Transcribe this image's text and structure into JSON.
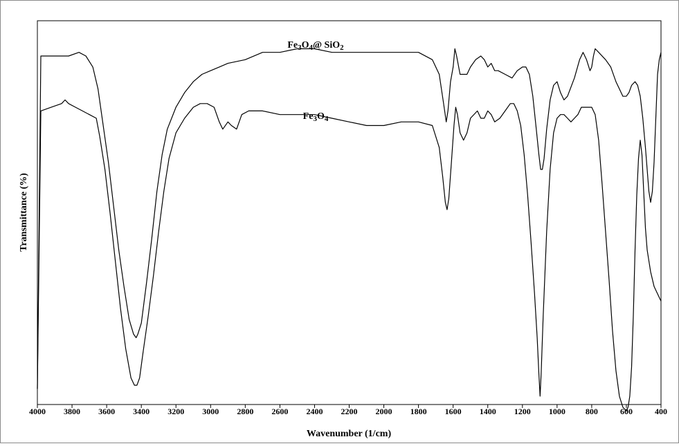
{
  "chart_data": {
    "type": "line",
    "title": "",
    "xlabel": "Wavenumber (1/cm)",
    "ylabel": "Transmittance (%)",
    "xlim": [
      4000,
      400
    ],
    "x_reversed": true,
    "ylim": [
      0,
      100
    ],
    "y_ticks_shown": false,
    "grid": false,
    "legend": "none (series labeled inline above curves)",
    "x_ticks": [
      4000,
      3800,
      3600,
      3400,
      3200,
      3000,
      2800,
      2600,
      2400,
      2200,
      2000,
      1800,
      1600,
      1400,
      1200,
      1000,
      800,
      600,
      400
    ],
    "series": [
      {
        "name": "Fe3O4@SiO2",
        "label_parts": [
          [
            "Fe",
            0
          ],
          [
            "3",
            1
          ],
          [
            "O",
            0
          ],
          [
            "4",
            1
          ],
          [
            "@ SiO",
            0
          ],
          [
            "2",
            1
          ]
        ],
        "color": "#000000",
        "points": [
          [
            4000,
            2
          ],
          [
            3980,
            93
          ],
          [
            3900,
            93
          ],
          [
            3820,
            93
          ],
          [
            3760,
            94
          ],
          [
            3720,
            93
          ],
          [
            3680,
            90
          ],
          [
            3650,
            84
          ],
          [
            3620,
            74
          ],
          [
            3590,
            64
          ],
          [
            3560,
            52
          ],
          [
            3530,
            40
          ],
          [
            3500,
            30
          ],
          [
            3470,
            21
          ],
          [
            3445,
            17
          ],
          [
            3430,
            16
          ],
          [
            3420,
            17
          ],
          [
            3400,
            20
          ],
          [
            3370,
            31
          ],
          [
            3340,
            43
          ],
          [
            3310,
            56
          ],
          [
            3280,
            66
          ],
          [
            3250,
            73
          ],
          [
            3200,
            79
          ],
          [
            3150,
            83
          ],
          [
            3100,
            86
          ],
          [
            3050,
            88
          ],
          [
            3000,
            89
          ],
          [
            2950,
            90
          ],
          [
            2900,
            91
          ],
          [
            2800,
            92
          ],
          [
            2700,
            94
          ],
          [
            2600,
            94
          ],
          [
            2500,
            95
          ],
          [
            2400,
            95
          ],
          [
            2300,
            94
          ],
          [
            2200,
            94
          ],
          [
            2100,
            94
          ],
          [
            2000,
            94
          ],
          [
            1900,
            94
          ],
          [
            1800,
            94
          ],
          [
            1720,
            92
          ],
          [
            1680,
            88
          ],
          [
            1655,
            80
          ],
          [
            1640,
            75
          ],
          [
            1630,
            78
          ],
          [
            1615,
            86
          ],
          [
            1600,
            90
          ],
          [
            1590,
            95
          ],
          [
            1580,
            93
          ],
          [
            1560,
            88
          ],
          [
            1520,
            88
          ],
          [
            1500,
            90
          ],
          [
            1470,
            92
          ],
          [
            1440,
            93
          ],
          [
            1420,
            92
          ],
          [
            1400,
            90
          ],
          [
            1380,
            91
          ],
          [
            1360,
            89
          ],
          [
            1340,
            89
          ],
          [
            1300,
            88
          ],
          [
            1260,
            87
          ],
          [
            1230,
            89
          ],
          [
            1200,
            90
          ],
          [
            1180,
            90
          ],
          [
            1160,
            88
          ],
          [
            1140,
            82
          ],
          [
            1120,
            73
          ],
          [
            1105,
            66
          ],
          [
            1095,
            62
          ],
          [
            1085,
            62
          ],
          [
            1075,
            65
          ],
          [
            1060,
            73
          ],
          [
            1040,
            81
          ],
          [
            1020,
            85
          ],
          [
            1000,
            86
          ],
          [
            980,
            83
          ],
          [
            960,
            81
          ],
          [
            940,
            82
          ],
          [
            900,
            87
          ],
          [
            870,
            92
          ],
          [
            850,
            94
          ],
          [
            830,
            92
          ],
          [
            810,
            89
          ],
          [
            800,
            90
          ],
          [
            790,
            93
          ],
          [
            780,
            95
          ],
          [
            760,
            94
          ],
          [
            720,
            92
          ],
          [
            690,
            90
          ],
          [
            660,
            86
          ],
          [
            640,
            84
          ],
          [
            620,
            82
          ],
          [
            600,
            82
          ],
          [
            585,
            83
          ],
          [
            570,
            85
          ],
          [
            550,
            86
          ],
          [
            535,
            85
          ],
          [
            520,
            82
          ],
          [
            505,
            76
          ],
          [
            490,
            68
          ],
          [
            480,
            62
          ],
          [
            470,
            56
          ],
          [
            460,
            53
          ],
          [
            450,
            56
          ],
          [
            440,
            64
          ],
          [
            430,
            76
          ],
          [
            420,
            88
          ],
          [
            410,
            92
          ],
          [
            400,
            94
          ]
        ]
      },
      {
        "name": "Fe3O4",
        "label_parts": [
          [
            "Fe",
            0
          ],
          [
            "3",
            1
          ],
          [
            "O",
            0
          ],
          [
            "4",
            1
          ]
        ],
        "color": "#000000",
        "points": [
          [
            4000,
            2
          ],
          [
            3980,
            78
          ],
          [
            3920,
            79
          ],
          [
            3860,
            80
          ],
          [
            3840,
            81
          ],
          [
            3820,
            80
          ],
          [
            3780,
            79
          ],
          [
            3740,
            78
          ],
          [
            3700,
            77
          ],
          [
            3660,
            76
          ],
          [
            3640,
            71
          ],
          [
            3610,
            62
          ],
          [
            3580,
            50
          ],
          [
            3550,
            37
          ],
          [
            3520,
            24
          ],
          [
            3490,
            13
          ],
          [
            3460,
            5
          ],
          [
            3440,
            3
          ],
          [
            3425,
            3
          ],
          [
            3410,
            5
          ],
          [
            3390,
            12
          ],
          [
            3360,
            22
          ],
          [
            3330,
            33
          ],
          [
            3300,
            45
          ],
          [
            3270,
            56
          ],
          [
            3240,
            65
          ],
          [
            3200,
            72
          ],
          [
            3150,
            76
          ],
          [
            3100,
            79
          ],
          [
            3060,
            80
          ],
          [
            3020,
            80
          ],
          [
            2980,
            79
          ],
          [
            2950,
            75
          ],
          [
            2930,
            73
          ],
          [
            2900,
            75
          ],
          [
            2880,
            74
          ],
          [
            2850,
            73
          ],
          [
            2820,
            77
          ],
          [
            2780,
            78
          ],
          [
            2700,
            78
          ],
          [
            2600,
            77
          ],
          [
            2500,
            77
          ],
          [
            2400,
            77
          ],
          [
            2300,
            76
          ],
          [
            2200,
            75
          ],
          [
            2100,
            74
          ],
          [
            2000,
            74
          ],
          [
            1900,
            75
          ],
          [
            1800,
            75
          ],
          [
            1720,
            74
          ],
          [
            1680,
            68
          ],
          [
            1660,
            60
          ],
          [
            1645,
            53
          ],
          [
            1635,
            51
          ],
          [
            1625,
            54
          ],
          [
            1610,
            64
          ],
          [
            1595,
            74
          ],
          [
            1585,
            79
          ],
          [
            1575,
            77
          ],
          [
            1560,
            72
          ],
          [
            1540,
            70
          ],
          [
            1520,
            72
          ],
          [
            1500,
            76
          ],
          [
            1460,
            78
          ],
          [
            1440,
            76
          ],
          [
            1420,
            76
          ],
          [
            1400,
            78
          ],
          [
            1380,
            77
          ],
          [
            1360,
            75
          ],
          [
            1330,
            76
          ],
          [
            1300,
            78
          ],
          [
            1270,
            80
          ],
          [
            1250,
            80
          ],
          [
            1230,
            78
          ],
          [
            1210,
            74
          ],
          [
            1190,
            66
          ],
          [
            1170,
            55
          ],
          [
            1150,
            42
          ],
          [
            1130,
            28
          ],
          [
            1115,
            16
          ],
          [
            1105,
            6
          ],
          [
            1098,
            0
          ],
          [
            1092,
            6
          ],
          [
            1080,
            22
          ],
          [
            1060,
            45
          ],
          [
            1040,
            62
          ],
          [
            1020,
            72
          ],
          [
            1000,
            76
          ],
          [
            980,
            77
          ],
          [
            960,
            77
          ],
          [
            940,
            76
          ],
          [
            920,
            75
          ],
          [
            900,
            76
          ],
          [
            880,
            77
          ],
          [
            860,
            79
          ],
          [
            830,
            79
          ],
          [
            800,
            79
          ],
          [
            780,
            77
          ],
          [
            760,
            70
          ],
          [
            740,
            58
          ],
          [
            720,
            45
          ],
          [
            700,
            32
          ],
          [
            680,
            18
          ],
          [
            660,
            7
          ],
          [
            640,
            0
          ],
          [
            620,
            -3
          ],
          [
            600,
            -4
          ],
          [
            590,
            -3
          ],
          [
            580,
            0
          ],
          [
            570,
            8
          ],
          [
            560,
            22
          ],
          [
            550,
            40
          ],
          [
            540,
            55
          ],
          [
            530,
            65
          ],
          [
            520,
            70
          ],
          [
            510,
            66
          ],
          [
            500,
            56
          ],
          [
            490,
            46
          ],
          [
            480,
            40
          ],
          [
            470,
            37
          ],
          [
            460,
            34
          ],
          [
            450,
            32
          ],
          [
            440,
            30
          ],
          [
            430,
            29
          ],
          [
            420,
            28
          ],
          [
            410,
            27
          ],
          [
            400,
            26
          ]
        ]
      }
    ]
  }
}
